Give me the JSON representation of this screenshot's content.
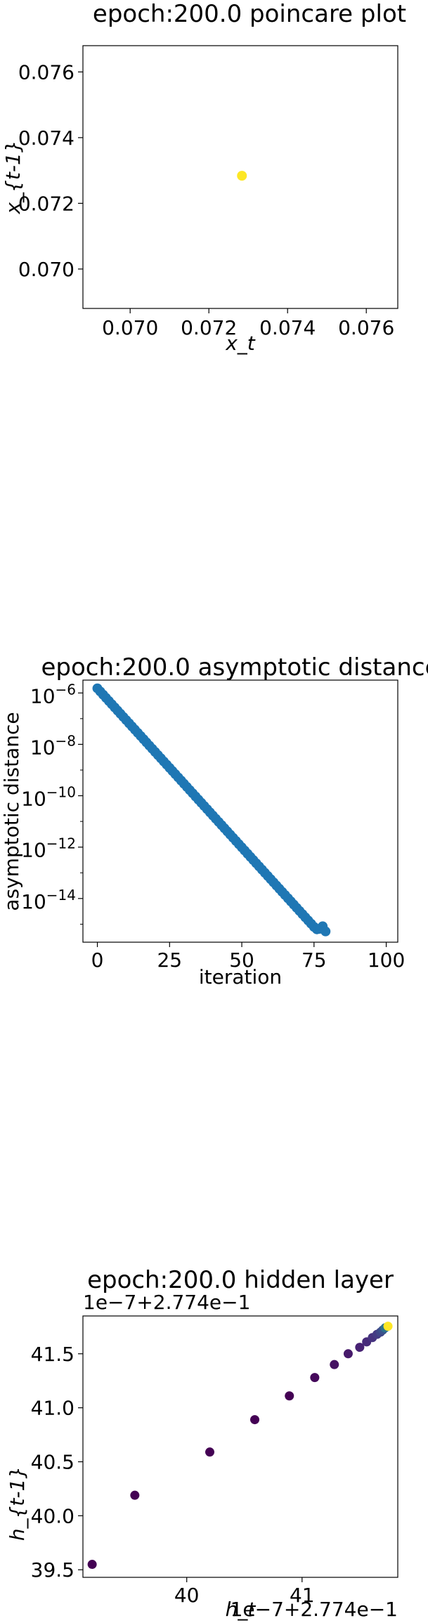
{
  "chart_data": [
    {
      "type": "scatter",
      "title": "epoch:200.0 poincare plot",
      "xlabel": "x_t",
      "ylabel": "x_{t-1}",
      "xlim": [
        0.0688,
        0.0768
      ],
      "ylim": [
        0.0688,
        0.0768
      ],
      "xticks": [
        "0.070",
        "0.072",
        "0.074",
        "0.076"
      ],
      "yticks": [
        "0.070",
        "0.072",
        "0.074",
        "0.076"
      ],
      "points": [
        {
          "x": 0.07284,
          "y": 0.07284
        }
      ],
      "color": "#fde725",
      "grid": false
    },
    {
      "type": "scatter",
      "title": "epoch:200.0 asymptotic distance",
      "xlabel": "iteration",
      "ylabel": "asymptotic distance",
      "xlim": [
        -5,
        104
      ],
      "yscale": "log",
      "ylim_exp": [
        -15.7,
        -5.5
      ],
      "xticks": [
        "0",
        "25",
        "50",
        "75",
        "100"
      ],
      "yticks": [
        {
          "base": "10",
          "exp": "−6"
        },
        {
          "base": "10",
          "exp": "−8"
        },
        {
          "base": "10",
          "exp": "−10"
        },
        {
          "base": "10",
          "exp": "−12"
        },
        {
          "base": "10",
          "exp": "−14"
        }
      ],
      "log10_start": -5.82,
      "log10_slope": -0.1238,
      "n_points": 80,
      "log10_end_values": [
        -15.2,
        -15.18,
        -15.08,
        -15.28
      ],
      "color": "#1f77b4",
      "grid": false
    },
    {
      "type": "scatter",
      "title": "epoch:200.0 hidden layer",
      "xlabel": "h_t",
      "ylabel": "h_{t-1}",
      "x_offset_label": "1e−7+2.774e−1",
      "y_offset_label": "1e−7+2.774e−1",
      "xlim": [
        39.1,
        41.83
      ],
      "ylim": [
        39.43,
        41.85
      ],
      "xticks": [
        "40",
        "41"
      ],
      "yticks": [
        "39.5",
        "40.0",
        "40.5",
        "41.0",
        "41.5"
      ],
      "points": [
        {
          "x": 39.18,
          "y": 39.55
        },
        {
          "x": 39.55,
          "y": 40.19
        },
        {
          "x": 40.2,
          "y": 40.59
        },
        {
          "x": 40.59,
          "y": 40.89
        },
        {
          "x": 40.89,
          "y": 41.11
        },
        {
          "x": 41.11,
          "y": 41.28
        },
        {
          "x": 41.28,
          "y": 41.4
        },
        {
          "x": 41.4,
          "y": 41.5
        },
        {
          "x": 41.5,
          "y": 41.56
        },
        {
          "x": 41.56,
          "y": 41.61
        },
        {
          "x": 41.61,
          "y": 41.65
        },
        {
          "x": 41.65,
          "y": 41.68
        },
        {
          "x": 41.68,
          "y": 41.7
        },
        {
          "x": 41.7,
          "y": 41.72
        },
        {
          "x": 41.72,
          "y": 41.74
        },
        {
          "x": 41.745,
          "y": 41.755
        }
      ],
      "point_colors": [
        "#440154",
        "#440154",
        "#440154",
        "#440154",
        "#440154",
        "#45095b",
        "#461363",
        "#471a6b",
        "#472273",
        "#472a7a",
        "#46337f",
        "#443b84",
        "#404688",
        "#3b528b",
        "#2c728e",
        "#fde725"
      ],
      "grid": false
    }
  ]
}
